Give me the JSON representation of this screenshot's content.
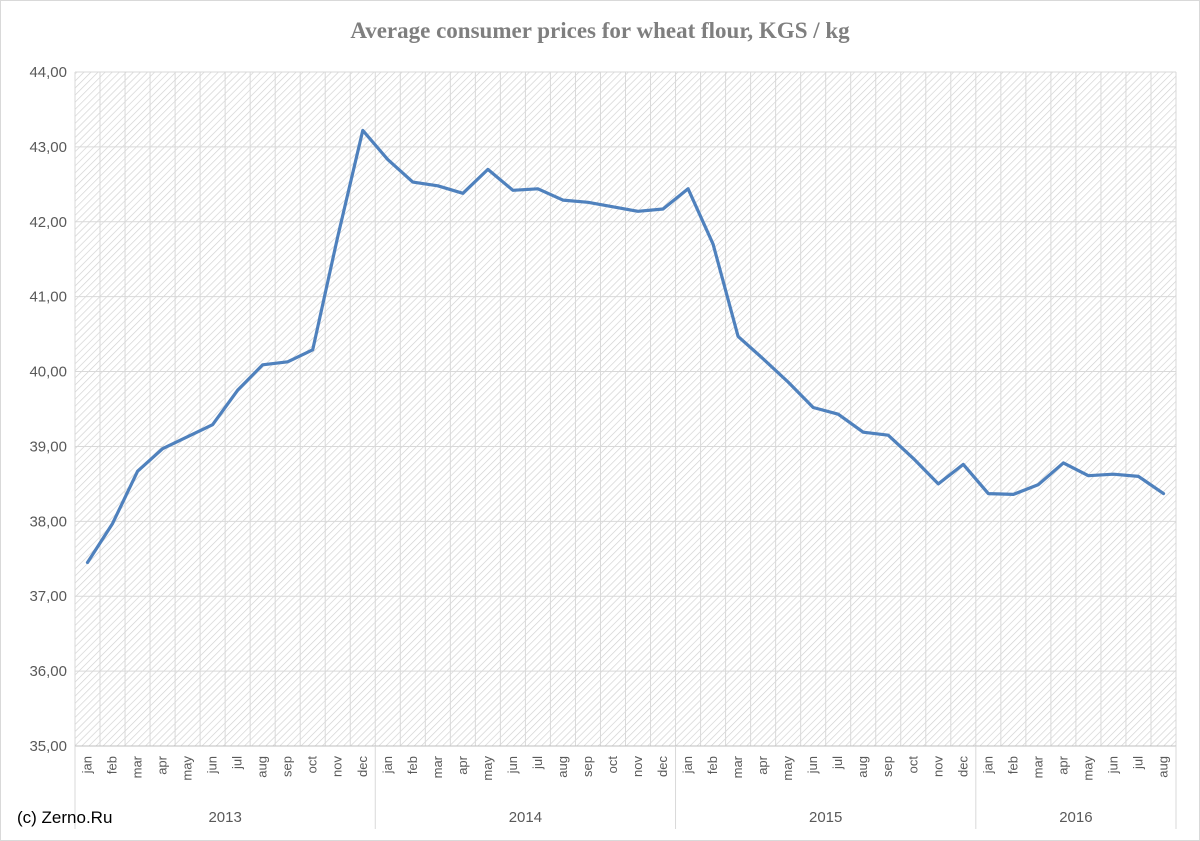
{
  "chart_data": {
    "type": "line",
    "title": "Average consumer prices for wheat flour, KGS / kg",
    "xlabel": "",
    "ylabel": "",
    "ylim": [
      35,
      44
    ],
    "y_ticks": [
      "35,00",
      "36,00",
      "37,00",
      "38,00",
      "39,00",
      "40,00",
      "41,00",
      "42,00",
      "43,00",
      "44,00"
    ],
    "grid": true,
    "legend": "none",
    "years": [
      {
        "label": "2013",
        "months": 12
      },
      {
        "label": "2014",
        "months": 12
      },
      {
        "label": "2015",
        "months": 12
      },
      {
        "label": "2016",
        "months": 8
      }
    ],
    "categories": [
      "jan",
      "feb",
      "mar",
      "apr",
      "may",
      "jun",
      "jul",
      "aug",
      "sep",
      "oct",
      "nov",
      "dec",
      "jan",
      "feb",
      "mar",
      "apr",
      "may",
      "jun",
      "jul",
      "aug",
      "sep",
      "oct",
      "nov",
      "dec",
      "jan",
      "feb",
      "mar",
      "apr",
      "may",
      "jun",
      "jul",
      "aug",
      "sep",
      "oct",
      "nov",
      "dec",
      "jan",
      "feb",
      "mar",
      "apr",
      "may",
      "jun",
      "jul",
      "aug"
    ],
    "series": [
      {
        "values": [
          37.45,
          37.97,
          38.67,
          38.97,
          39.13,
          39.29,
          39.75,
          40.09,
          40.13,
          40.29,
          41.8,
          43.22,
          42.83,
          42.53,
          42.48,
          42.38,
          42.7,
          42.42,
          42.44,
          42.29,
          42.26,
          42.2,
          42.14,
          42.17,
          42.44,
          41.7,
          40.47,
          40.17,
          39.86,
          39.52,
          39.43,
          39.19,
          39.15,
          38.84,
          38.5,
          38.76,
          38.37,
          38.36,
          38.49,
          38.78,
          38.61,
          38.63,
          38.6,
          38.37
        ],
        "color": "#4f81bd"
      }
    ]
  },
  "watermark": "(c) Zerno.Ru"
}
